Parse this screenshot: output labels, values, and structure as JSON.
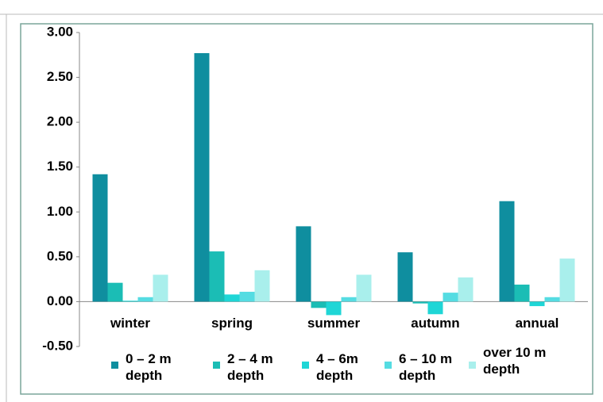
{
  "chart_data": {
    "type": "bar",
    "categories": [
      "winter",
      "spring",
      "summer",
      "autumn",
      "annual"
    ],
    "series": [
      {
        "name": "0 – 2 m depth",
        "color": "#0f8e9f",
        "values": [
          1.42,
          2.77,
          0.84,
          0.55,
          1.12
        ]
      },
      {
        "name": "2 – 4 m depth",
        "color": "#1bbdb5",
        "values": [
          0.21,
          0.56,
          -0.07,
          -0.02,
          0.19
        ]
      },
      {
        "name": "4 – 6m depth",
        "color": "#1fd6d6",
        "values": [
          0.01,
          0.08,
          -0.15,
          -0.14,
          -0.05
        ]
      },
      {
        "name": "6 – 10 m depth",
        "color": "#55dce2",
        "values": [
          0.05,
          0.11,
          0.05,
          0.1,
          0.05
        ]
      },
      {
        "name": "over 10 m depth",
        "color": "#a9efec",
        "values": [
          0.3,
          0.35,
          0.3,
          0.27,
          0.48
        ]
      }
    ],
    "ylim": [
      -0.5,
      3.0
    ],
    "yticks": [
      {
        "value": -0.5,
        "label": "-0.50"
      },
      {
        "value": 0,
        "label": "0.00"
      },
      {
        "value": 0.5,
        "label": "0.50"
      },
      {
        "value": 1,
        "label": "1.00"
      },
      {
        "value": 1.5,
        "label": "1.50"
      },
      {
        "value": 2,
        "label": "2.00"
      },
      {
        "value": 2.5,
        "label": "2.50"
      },
      {
        "value": 3,
        "label": "3.00"
      }
    ]
  }
}
